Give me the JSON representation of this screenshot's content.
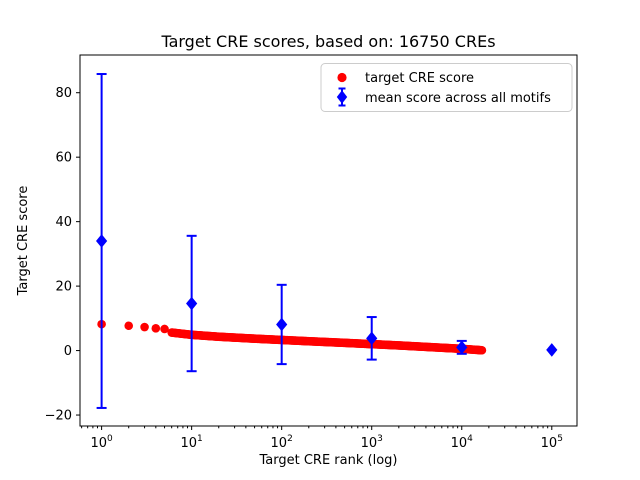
{
  "chart_data": {
    "type": "scatter",
    "title": "Target CRE scores, based on: 16750 CREs",
    "xlabel": "Target CRE rank (log)",
    "ylabel": "Target CRE score",
    "x_scale": "log",
    "xlim_log10": [
      -0.24,
      5.28
    ],
    "ylim": [
      -23.4,
      91.7
    ],
    "x_tick_exponents": [
      0,
      1,
      2,
      3,
      4,
      5
    ],
    "x_tick_base": "10",
    "y_ticks": [
      {
        "value": -20,
        "label": "−20"
      },
      {
        "value": 0,
        "label": "0"
      },
      {
        "value": 20,
        "label": "20"
      },
      {
        "value": 40,
        "label": "40"
      },
      {
        "value": 60,
        "label": "60"
      },
      {
        "value": 80,
        "label": "80"
      }
    ],
    "grid": false,
    "legend_position": "upper right",
    "series": [
      {
        "name": "target CRE score",
        "marker": "circle",
        "color": "#ff0000",
        "marker_diameter_px": 8.6,
        "n_points": 16750,
        "rank_range": [
          1,
          16750
        ],
        "anchor_points": [
          [
            1,
            8.2
          ],
          [
            2,
            7.7
          ],
          [
            3,
            7.3
          ],
          [
            4,
            6.9
          ],
          [
            5,
            6.7
          ],
          [
            6,
            5.6
          ],
          [
            8,
            5.2
          ],
          [
            10,
            4.9
          ],
          [
            20,
            4.3
          ],
          [
            50,
            3.7
          ],
          [
            100,
            3.3
          ],
          [
            200,
            2.9
          ],
          [
            500,
            2.4
          ],
          [
            1000,
            2.0
          ],
          [
            2000,
            1.6
          ],
          [
            5000,
            1.0
          ],
          [
            10000,
            0.55
          ],
          [
            16750,
            0.1
          ]
        ]
      },
      {
        "name": "mean score across all motifs",
        "marker": "diamond",
        "color": "#0000ff",
        "error_bars": true,
        "points": [
          {
            "x": 1,
            "y": 34.0,
            "err": 51.8
          },
          {
            "x": 10,
            "y": 14.6,
            "err": 21.0
          },
          {
            "x": 100,
            "y": 8.1,
            "err": 12.3
          },
          {
            "x": 1000,
            "y": 3.8,
            "err": 6.6
          },
          {
            "x": 10000,
            "y": 1.0,
            "err": 2.0
          },
          {
            "x": 100000,
            "y": 0.2,
            "err": 0
          }
        ]
      }
    ]
  }
}
